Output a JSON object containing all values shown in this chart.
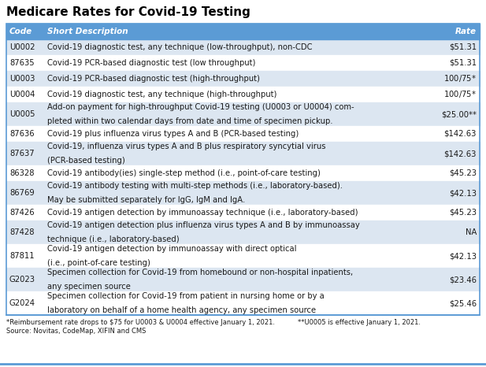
{
  "title": "Medicare Rates for Covid-19 Testing",
  "header": [
    "Code",
    "Short Description",
    "Rate"
  ],
  "header_bg": "#5b9bd5",
  "header_text_color": "#ffffff",
  "rows": [
    [
      "U0002",
      "Covid-19 diagnostic test, any technique (low-throughput), non-CDC",
      "$51.31"
    ],
    [
      "87635",
      "Covid-19 PCR-based diagnostic test (low throughput)",
      "$51.31"
    ],
    [
      "U0003",
      "Covid-19 PCR-based diagnostic test (high-throughput)",
      "$100/$75*"
    ],
    [
      "U0004",
      "Covid-19 diagnostic test, any technique (high-throughput)",
      "$100/$75*"
    ],
    [
      "U0005",
      "Add-on payment for high-throughput Covid-19 testing (U0003 or U0004) com-\npleted within two calendar days from date and time of specimen pickup.",
      "$25.00**"
    ],
    [
      "87636",
      "Covid-19 plus influenza virus types A and B (PCR-based testing)",
      "$142.63"
    ],
    [
      "87637",
      "Covid-19, influenza virus types A and B plus respiratory syncytial virus\n(PCR-based testing)",
      "$142.63"
    ],
    [
      "86328",
      "Covid-19 antibody(ies) single-step method (i.e., point-of-care testing)",
      "$45.23"
    ],
    [
      "86769",
      "Covid-19 antibody testing with multi-step methods (i.e., laboratory-based).\nMay be submitted separately for IgG, IgM and IgA.",
      "$42.13"
    ],
    [
      "87426",
      "Covid-19 antigen detection by immunoassay technique (i.e., laboratory-based)",
      "$45.23"
    ],
    [
      "87428",
      "Covid-19 antigen detection plus influenza virus types A and B by immunoassay\ntechnique (i.e., laboratory-based)",
      "NA"
    ],
    [
      "87811",
      "Covid-19 antigen detection by immunoassay with direct optical\n(i.e., point-of-care testing)",
      "$42.13"
    ],
    [
      "G2023",
      "Specimen collection for Covid-19 from homebound or non-hospital inpatients,\nany specimen source",
      "$23.46"
    ],
    [
      "G2024",
      "Specimen collection for Covid-19 from patient in nursing home or by a\nlaboratory on behalf of a home health agency, any specimen source",
      "$25.46"
    ]
  ],
  "row_colors_even": "#dce6f1",
  "row_colors_odd": "#ffffff",
  "footnote1": "*Reimbursement rate drops to $75 for U0003 & U0004 effective January 1, 2021.",
  "footnote2": "**U0005 is effective January 1, 2021.",
  "footnote3": "Source: Novitas, CodeMap, XIFIN and CMS",
  "background_color": "#ffffff",
  "border_color": "#5b9bd5",
  "title_color": "#000000",
  "row_text_color": "#1a1a1a",
  "footnote_color": "#1a1a1a",
  "fig_width": 6.17,
  "fig_height": 4.66,
  "dpi": 100
}
